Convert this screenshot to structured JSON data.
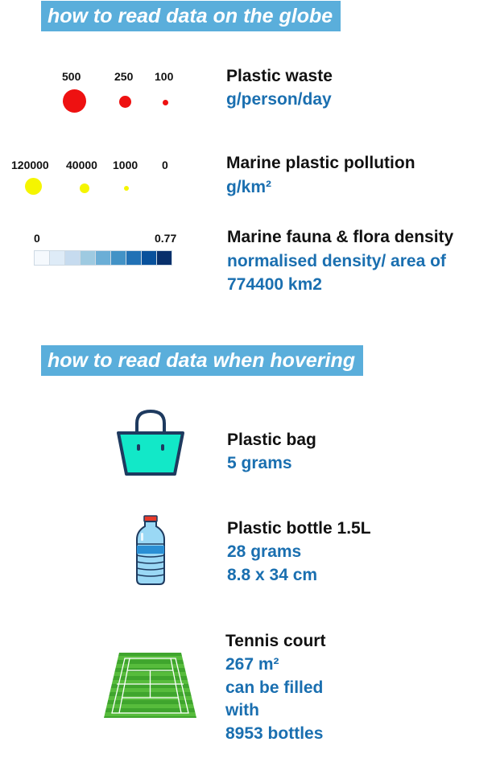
{
  "globe_section": {
    "heading": "how to read data on the globe",
    "plastic_waste": {
      "values": [
        "500",
        "250",
        "100"
      ],
      "title": "Plastic waste",
      "unit": "g/person/day",
      "color": "#ee1111"
    },
    "marine_pollution": {
      "values": [
        "120000",
        "40000",
        "1000",
        "0"
      ],
      "title": "Marine plastic pollution",
      "unit": "g/km²",
      "color": "#f5f500"
    },
    "fauna_flora": {
      "min": "0",
      "max": "0.77",
      "title": "Marine fauna & flora density",
      "unit_line1": "normalised density/ area of",
      "unit_line2": "774400 km2",
      "scale_colors": [
        "#f5f9fd",
        "#deebf7",
        "#c6dbef",
        "#9ecae1",
        "#6baed6",
        "#4292c6",
        "#2171b5",
        "#08519c",
        "#08306b"
      ]
    }
  },
  "hover_section": {
    "heading": "how to read data when hovering",
    "items": [
      {
        "icon": "plastic-bag-icon",
        "title": "Plastic bag",
        "lines": [
          "5 grams"
        ]
      },
      {
        "icon": "plastic-bottle-icon",
        "title": "Plastic bottle 1.5L",
        "lines": [
          "28 grams",
          "8.8 x 34 cm"
        ]
      },
      {
        "icon": "tennis-court-icon",
        "title": "Tennis court",
        "lines": [
          "267 m²",
          "can be filled",
          "with",
          "8953 bottles"
        ]
      }
    ]
  },
  "colors": {
    "banner": "#5aaedb",
    "accent_text": "#1a6fb0"
  }
}
